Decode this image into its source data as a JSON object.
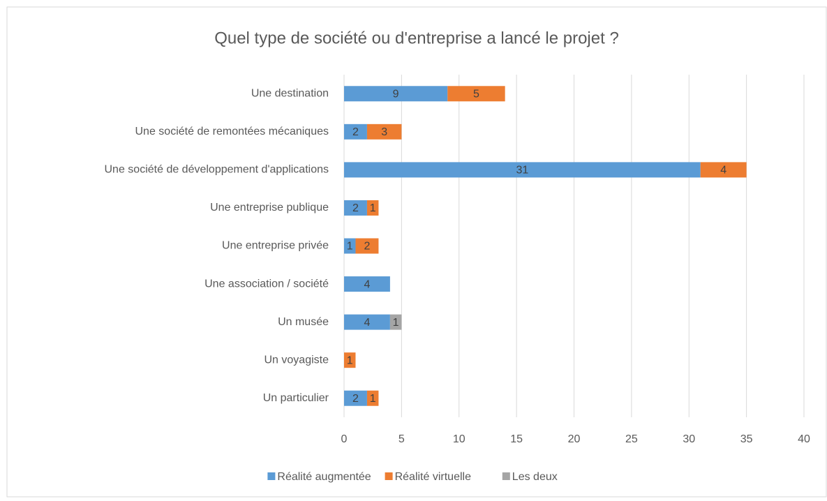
{
  "chart_data": {
    "type": "bar",
    "orientation": "horizontal",
    "stacked": true,
    "title": "Quel type de société ou d'entreprise a lancé le projet ?",
    "categories": [
      "Une destination",
      "Une société de remontées mécaniques",
      "Une société de développement d'applications",
      "Une entreprise publique",
      "Une entreprise privée",
      "Une association / société",
      "Un musée",
      "Un voyagiste",
      "Un particulier"
    ],
    "series": [
      {
        "name": "Réalité augmentée",
        "color": "#5b9bd5",
        "values": [
          9,
          2,
          31,
          2,
          1,
          4,
          4,
          null,
          2
        ]
      },
      {
        "name": "Réalité virtuelle",
        "color": "#ed7d31",
        "values": [
          5,
          3,
          4,
          1,
          2,
          null,
          null,
          1,
          1
        ]
      },
      {
        "name": "Les deux",
        "color": "#a5a5a5",
        "values": [
          null,
          null,
          null,
          null,
          null,
          null,
          1,
          null,
          null
        ]
      }
    ],
    "xlim": [
      0,
      40
    ],
    "xticks": [
      0,
      5,
      10,
      15,
      20,
      25,
      30,
      35,
      40
    ],
    "grid": true,
    "legend": "bottom"
  }
}
